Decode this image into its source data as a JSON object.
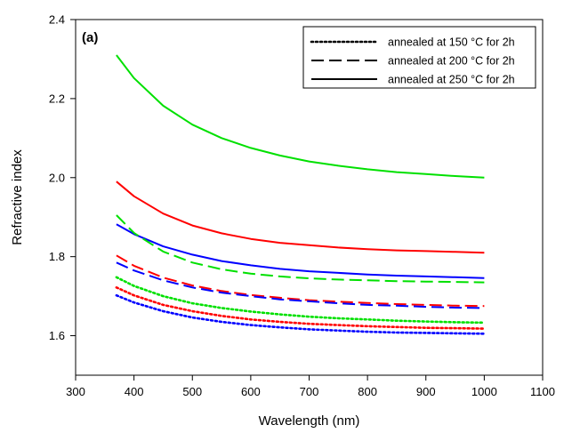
{
  "chart_data": {
    "type": "line",
    "panel_label": "(a)",
    "xlabel": "Wavelength (nm)",
    "ylabel": "Refractive index",
    "xlim": [
      300,
      1100
    ],
    "ylim": [
      1.5,
      2.4
    ],
    "xticks": [
      "300",
      "400",
      "500",
      "600",
      "700",
      "800",
      "900",
      "1000",
      "1100"
    ],
    "yticks": [
      "1.6",
      "1.8",
      "2.0",
      "2.2",
      "2.4"
    ],
    "grid": false,
    "legend_position": "top-right",
    "legend": [
      {
        "style": "dotted",
        "text": "annealed at 150 °C for 2h"
      },
      {
        "style": "dashed",
        "text": "annealed at 200 °C for 2h"
      },
      {
        "style": "solid",
        "text": "annealed at 250 °C for 2h"
      }
    ],
    "colors": {
      "green": "#00e000",
      "red": "#ff0000",
      "blue": "#0000ff"
    },
    "x": [
      370,
      400,
      450,
      500,
      550,
      600,
      650,
      700,
      750,
      800,
      850,
      900,
      950,
      1000
    ],
    "series": [
      {
        "style": "solid",
        "color": "green",
        "values": [
          2.31,
          2.252,
          2.182,
          2.134,
          2.1,
          2.075,
          2.056,
          2.041,
          2.03,
          2.021,
          2.014,
          2.009,
          2.004,
          2.0
        ]
      },
      {
        "style": "solid",
        "color": "red",
        "values": [
          1.99,
          1.953,
          1.909,
          1.879,
          1.859,
          1.845,
          1.835,
          1.829,
          1.823,
          1.819,
          1.816,
          1.814,
          1.812,
          1.81
        ]
      },
      {
        "style": "solid",
        "color": "blue",
        "values": [
          1.882,
          1.857,
          1.826,
          1.805,
          1.789,
          1.778,
          1.769,
          1.763,
          1.759,
          1.755,
          1.752,
          1.75,
          1.748,
          1.746
        ]
      },
      {
        "style": "dashed",
        "color": "green",
        "values": [
          1.905,
          1.86,
          1.813,
          1.785,
          1.768,
          1.757,
          1.75,
          1.745,
          1.742,
          1.74,
          1.738,
          1.737,
          1.736,
          1.735
        ]
      },
      {
        "style": "dashed",
        "color": "red",
        "values": [
          1.803,
          1.777,
          1.747,
          1.727,
          1.713,
          1.703,
          1.696,
          1.69,
          1.686,
          1.683,
          1.68,
          1.678,
          1.676,
          1.675
        ]
      },
      {
        "style": "dashed",
        "color": "blue",
        "values": [
          1.785,
          1.765,
          1.74,
          1.722,
          1.709,
          1.7,
          1.692,
          1.687,
          1.682,
          1.678,
          1.676,
          1.673,
          1.671,
          1.67
        ]
      },
      {
        "style": "dotted",
        "color": "green",
        "values": [
          1.748,
          1.726,
          1.7,
          1.682,
          1.67,
          1.661,
          1.654,
          1.648,
          1.644,
          1.641,
          1.638,
          1.636,
          1.634,
          1.633
        ]
      },
      {
        "style": "dotted",
        "color": "red",
        "values": [
          1.722,
          1.702,
          1.678,
          1.662,
          1.65,
          1.641,
          1.635,
          1.63,
          1.627,
          1.624,
          1.622,
          1.62,
          1.619,
          1.618
        ]
      },
      {
        "style": "dotted",
        "color": "blue",
        "values": [
          1.702,
          1.684,
          1.662,
          1.646,
          1.635,
          1.627,
          1.621,
          1.616,
          1.613,
          1.61,
          1.608,
          1.607,
          1.606,
          1.605
        ]
      }
    ]
  }
}
